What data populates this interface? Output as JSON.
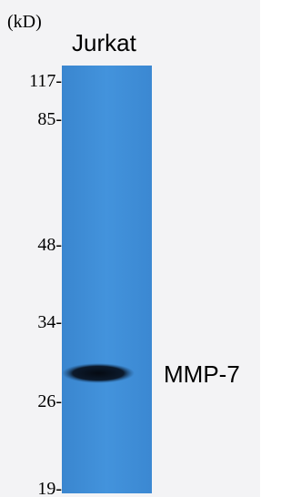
{
  "unit_label": "(kD)",
  "lane_label": "Jurkat",
  "markers": [
    "117-",
    "85-",
    "48-",
    "34-",
    "26-",
    "19-"
  ],
  "band_label": "MMP-7"
}
